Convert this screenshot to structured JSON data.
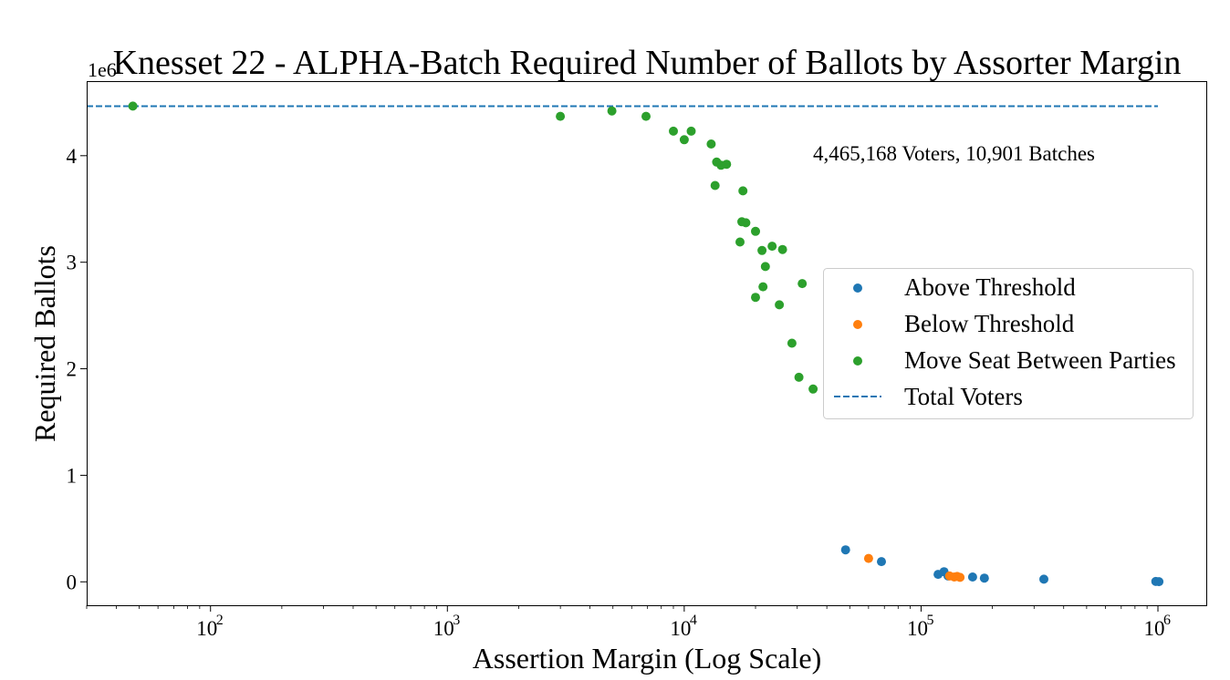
{
  "chart_data": {
    "type": "scatter",
    "title": "Knesset 22 - ALPHA-Batch Required Number of Ballots by Assorter Margin",
    "xlabel": "Assertion Margin (Log Scale)",
    "ylabel": "Required Ballots",
    "y_offset_label": "1e6",
    "x_scale": "log",
    "xlim": [
      30,
      1600000
    ],
    "ylim": [
      -220000,
      4700000
    ],
    "x_ticks": [
      {
        "value": 100,
        "base": "10",
        "exp": "2"
      },
      {
        "value": 1000,
        "base": "10",
        "exp": "3"
      },
      {
        "value": 10000,
        "base": "10",
        "exp": "4"
      },
      {
        "value": 100000,
        "base": "10",
        "exp": "5"
      },
      {
        "value": 1000000,
        "base": "10",
        "exp": "6"
      }
    ],
    "y_ticks": [
      {
        "value": 0,
        "label": "0"
      },
      {
        "value": 1000000,
        "label": "1"
      },
      {
        "value": 2000000,
        "label": "2"
      },
      {
        "value": 3000000,
        "label": "3"
      },
      {
        "value": 4000000,
        "label": "4"
      }
    ],
    "grid": false,
    "annotation": "4,465,168 Voters, 10,901 Batches",
    "reference_line": {
      "name": "Total Voters",
      "value": 4465168,
      "x_range": [
        30,
        1000000
      ],
      "color": "#1f77b4",
      "style": "dashed"
    },
    "legend_position": "center-right",
    "series": [
      {
        "name": "Above Threshold",
        "color": "#1f77b4",
        "points": [
          [
            48000,
            300000
          ],
          [
            68000,
            190000
          ],
          [
            118000,
            70000
          ],
          [
            125000,
            95000
          ],
          [
            130000,
            55000
          ],
          [
            165000,
            45000
          ],
          [
            185000,
            35000
          ],
          [
            330000,
            25000
          ],
          [
            980000,
            3000
          ],
          [
            1010000,
            2000
          ]
        ]
      },
      {
        "name": "Below Threshold",
        "color": "#ff7f0e",
        "points": [
          [
            60000,
            220000
          ],
          [
            132000,
            55000
          ],
          [
            138000,
            45000
          ],
          [
            142000,
            50000
          ],
          [
            146000,
            42000
          ]
        ]
      },
      {
        "name": "Move Seat Between Parties",
        "color": "#2ca02c",
        "points": [
          [
            47,
            4465168
          ],
          [
            3000,
            4370000
          ],
          [
            4950,
            4420000
          ],
          [
            6900,
            4370000
          ],
          [
            9000,
            4230000
          ],
          [
            10000,
            4150000
          ],
          [
            10700,
            4230000
          ],
          [
            13000,
            4110000
          ],
          [
            13500,
            3720000
          ],
          [
            13700,
            3940000
          ],
          [
            14300,
            3910000
          ],
          [
            15100,
            3920000
          ],
          [
            17200,
            3190000
          ],
          [
            17500,
            3380000
          ],
          [
            17700,
            3670000
          ],
          [
            18200,
            3370000
          ],
          [
            20000,
            3290000
          ],
          [
            20000,
            2670000
          ],
          [
            21300,
            3110000
          ],
          [
            21500,
            2770000
          ],
          [
            22000,
            2960000
          ],
          [
            23500,
            3150000
          ],
          [
            25200,
            2600000
          ],
          [
            26000,
            3120000
          ],
          [
            28500,
            2240000
          ],
          [
            30500,
            1920000
          ],
          [
            31500,
            2800000
          ],
          [
            35000,
            1810000
          ]
        ]
      }
    ]
  }
}
